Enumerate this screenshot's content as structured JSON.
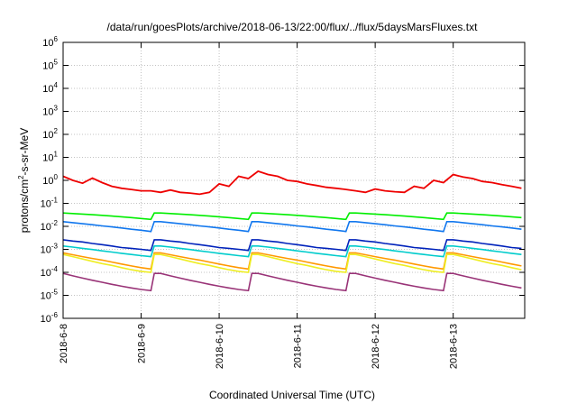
{
  "chart_data": {
    "type": "line",
    "title": "/data/run/goesPlots/archive/2018-06-13/22:00/flux/../flux/5daysMarsFluxes.txt",
    "xlabel": "Coordinated Universal Time (UTC)",
    "ylabel": {
      "pre": "protons/cm",
      "sup": "2",
      "post": "-s-sr-MeV"
    },
    "y_scale": "log",
    "ylim": [
      1e-06,
      1000000.0
    ],
    "y_ticks": [
      {
        "value": 1e-06,
        "base": "10",
        "exp": "-6"
      },
      {
        "value": 1e-05,
        "base": "10",
        "exp": "-5"
      },
      {
        "value": 0.0001,
        "base": "10",
        "exp": "-4"
      },
      {
        "value": 0.001,
        "base": "10",
        "exp": "-3"
      },
      {
        "value": 0.01,
        "base": "10",
        "exp": "-2"
      },
      {
        "value": 0.1,
        "base": "10",
        "exp": "-1"
      },
      {
        "value": 1,
        "base": "10",
        "exp": "0"
      },
      {
        "value": 10,
        "base": "10",
        "exp": "1"
      },
      {
        "value": 100,
        "base": "10",
        "exp": "2"
      },
      {
        "value": 1000,
        "base": "10",
        "exp": "3"
      },
      {
        "value": 10000,
        "base": "10",
        "exp": "4"
      },
      {
        "value": 100000,
        "base": "10",
        "exp": "5"
      },
      {
        "value": 1000000,
        "base": "10",
        "exp": "6"
      }
    ],
    "xlim": [
      "2018-06-08T00:00",
      "2018-06-13T22:00"
    ],
    "x_ticks": [
      {
        "value": "2018-06-08",
        "label": "2018-6-8"
      },
      {
        "value": "2018-06-09",
        "label": "2018-6-9"
      },
      {
        "value": "2018-06-10",
        "label": "2018-6-10"
      },
      {
        "value": "2018-06-11",
        "label": "2018-6-11"
      },
      {
        "value": "2018-06-12",
        "label": "2018-6-12"
      },
      {
        "value": "2018-06-13",
        "label": "2018-6-13"
      }
    ],
    "grid": true,
    "legend": "none",
    "sample_interval_hours": 3,
    "series": [
      {
        "color": "#ee0000",
        "values": [
          1.5,
          1.0,
          0.75,
          1.25,
          0.8,
          0.55,
          0.45,
          0.4,
          0.35,
          0.35,
          0.3,
          0.38,
          0.3,
          0.28,
          0.25,
          0.3,
          0.7,
          0.55,
          1.5,
          1.2,
          2.5,
          1.8,
          1.5,
          1.0,
          0.9,
          0.7,
          0.6,
          0.5,
          0.45,
          0.4,
          0.35,
          0.3,
          0.42,
          0.35,
          0.32,
          0.3,
          0.55,
          0.45,
          1.0,
          0.8,
          1.8,
          1.4,
          1.2,
          0.9,
          0.8,
          0.65,
          0.55,
          0.45,
          0.42,
          0.38,
          0.32,
          0.28,
          0.35,
          0.3,
          0.28,
          0.28,
          0.5,
          0.42,
          0.8,
          0.7,
          1.6,
          1.3,
          1.1,
          0.9,
          0.8,
          0.65,
          0.55,
          0.45,
          0.4,
          0.35,
          0.3,
          0.25,
          0.35,
          0.3,
          0.28,
          0.26,
          0.55,
          0.45,
          1.2,
          1.0,
          2.6,
          2.2,
          2.0,
          1.4,
          1.2,
          0.9,
          0.75,
          0.6,
          0.5,
          0.45,
          0.4,
          0.32,
          0.28,
          0.3,
          0.35,
          0.28,
          0.32,
          0.3,
          0.55,
          0.45,
          1.2,
          0.9,
          1.8,
          1.5,
          1.3,
          1.0,
          0.85,
          0.7,
          0.55,
          0.45,
          0.4,
          0.35,
          0.3,
          0.38,
          0.32,
          0.28,
          0.26,
          0.3,
          0.45,
          0.38,
          0.6,
          0.5,
          1.0,
          0.8,
          1.8,
          1.5,
          2.6,
          2.0
        ]
      },
      {
        "color": "#00ee00",
        "values": [
          0.038,
          0.036,
          0.034,
          0.032,
          0.03,
          0.028,
          0.026,
          0.024,
          0.022,
          0.02
        ]
      },
      {
        "color": "#1177ee",
        "values": [
          0.016,
          0.0145,
          0.013,
          0.0118,
          0.0105,
          0.0095,
          0.0085,
          0.0075,
          0.0068,
          0.006
        ]
      },
      {
        "color": "#0022bb",
        "values": [
          0.0026,
          0.0023,
          0.0021,
          0.0018,
          0.0016,
          0.0014,
          0.0012,
          0.0011,
          0.001,
          0.0009
        ]
      },
      {
        "color": "#00cccc",
        "values": [
          0.0014,
          0.00125,
          0.0011,
          0.00098,
          0.00086,
          0.00076,
          0.00067,
          0.0006,
          0.00053,
          0.00048
        ]
      },
      {
        "color": "#eeee22",
        "values": [
          0.0006,
          0.00048,
          0.00038,
          0.0003,
          0.00024,
          0.0002,
          0.00016,
          0.00013,
          0.00011,
          0.0001
        ]
      },
      {
        "color": "#ff9900",
        "values": [
          0.0007,
          0.00058,
          0.00048,
          0.0004,
          0.00034,
          0.00028,
          0.00023,
          0.00019,
          0.00016,
          0.00014
        ]
      },
      {
        "color": "#993377",
        "values": [
          9e-05,
          7e-05,
          5.6e-05,
          4.5e-05,
          3.7e-05,
          3e-05,
          2.5e-05,
          2.1e-05,
          1.8e-05,
          1.6e-05
        ]
      }
    ],
    "sawtooth_period_hours": 6
  }
}
